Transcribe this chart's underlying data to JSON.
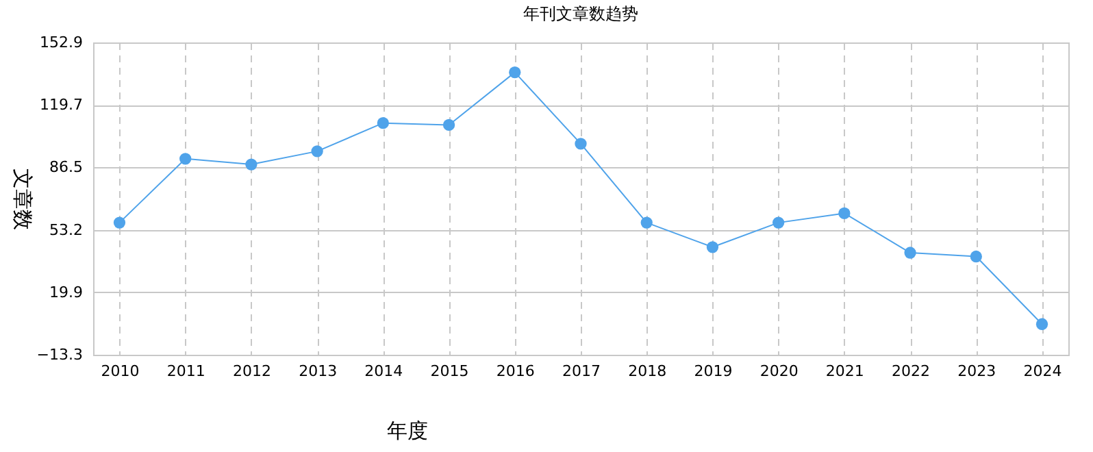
{
  "chart_data": {
    "type": "line",
    "title": "年刊文章数趋势",
    "xlabel": "年度",
    "ylabel": "文章数",
    "categories": [
      "2010",
      "2011",
      "2012",
      "2013",
      "2014",
      "2015",
      "2016",
      "2017",
      "2018",
      "2019",
      "2020",
      "2021",
      "2022",
      "2023",
      "2024"
    ],
    "series": [
      {
        "color": "#4fa3ea",
        "values": [
          57,
          91,
          88,
          95,
          110,
          109,
          137,
          99,
          57,
          44,
          57,
          62,
          41,
          39,
          3
        ]
      }
    ],
    "ylim": [
      -13.3,
      152.9
    ],
    "yticks": [
      -13.3,
      19.9,
      53.2,
      86.5,
      119.7,
      152.9
    ],
    "grid": true,
    "marker": "circle",
    "line_style": "solid"
  }
}
